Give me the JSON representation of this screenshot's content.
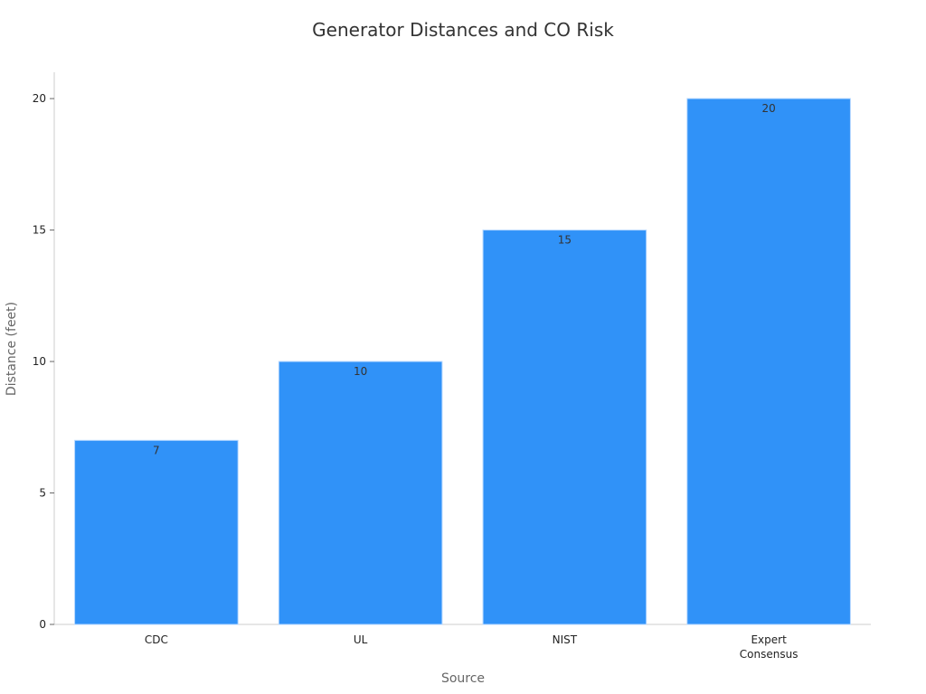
{
  "chart_data": {
    "type": "bar",
    "title": "Generator Distances and CO Risk",
    "xlabel": "Source",
    "ylabel": "Distance (feet)",
    "categories": [
      "CDC",
      "UL",
      "NIST",
      "Expert Consensus"
    ],
    "category_lines": [
      [
        "CDC"
      ],
      [
        "UL"
      ],
      [
        "NIST"
      ],
      [
        "Expert",
        "Consensus"
      ]
    ],
    "values": [
      7,
      10,
      15,
      20
    ],
    "data_labels": [
      "7",
      "10",
      "15",
      "20"
    ],
    "ylim": [
      0,
      21
    ],
    "yticks": [
      0,
      5,
      10,
      15,
      20
    ],
    "ytick_labels": [
      "0",
      "5",
      "10",
      "15",
      "20"
    ],
    "grid": false,
    "legend": "none",
    "bar_color": "#3092f8"
  }
}
